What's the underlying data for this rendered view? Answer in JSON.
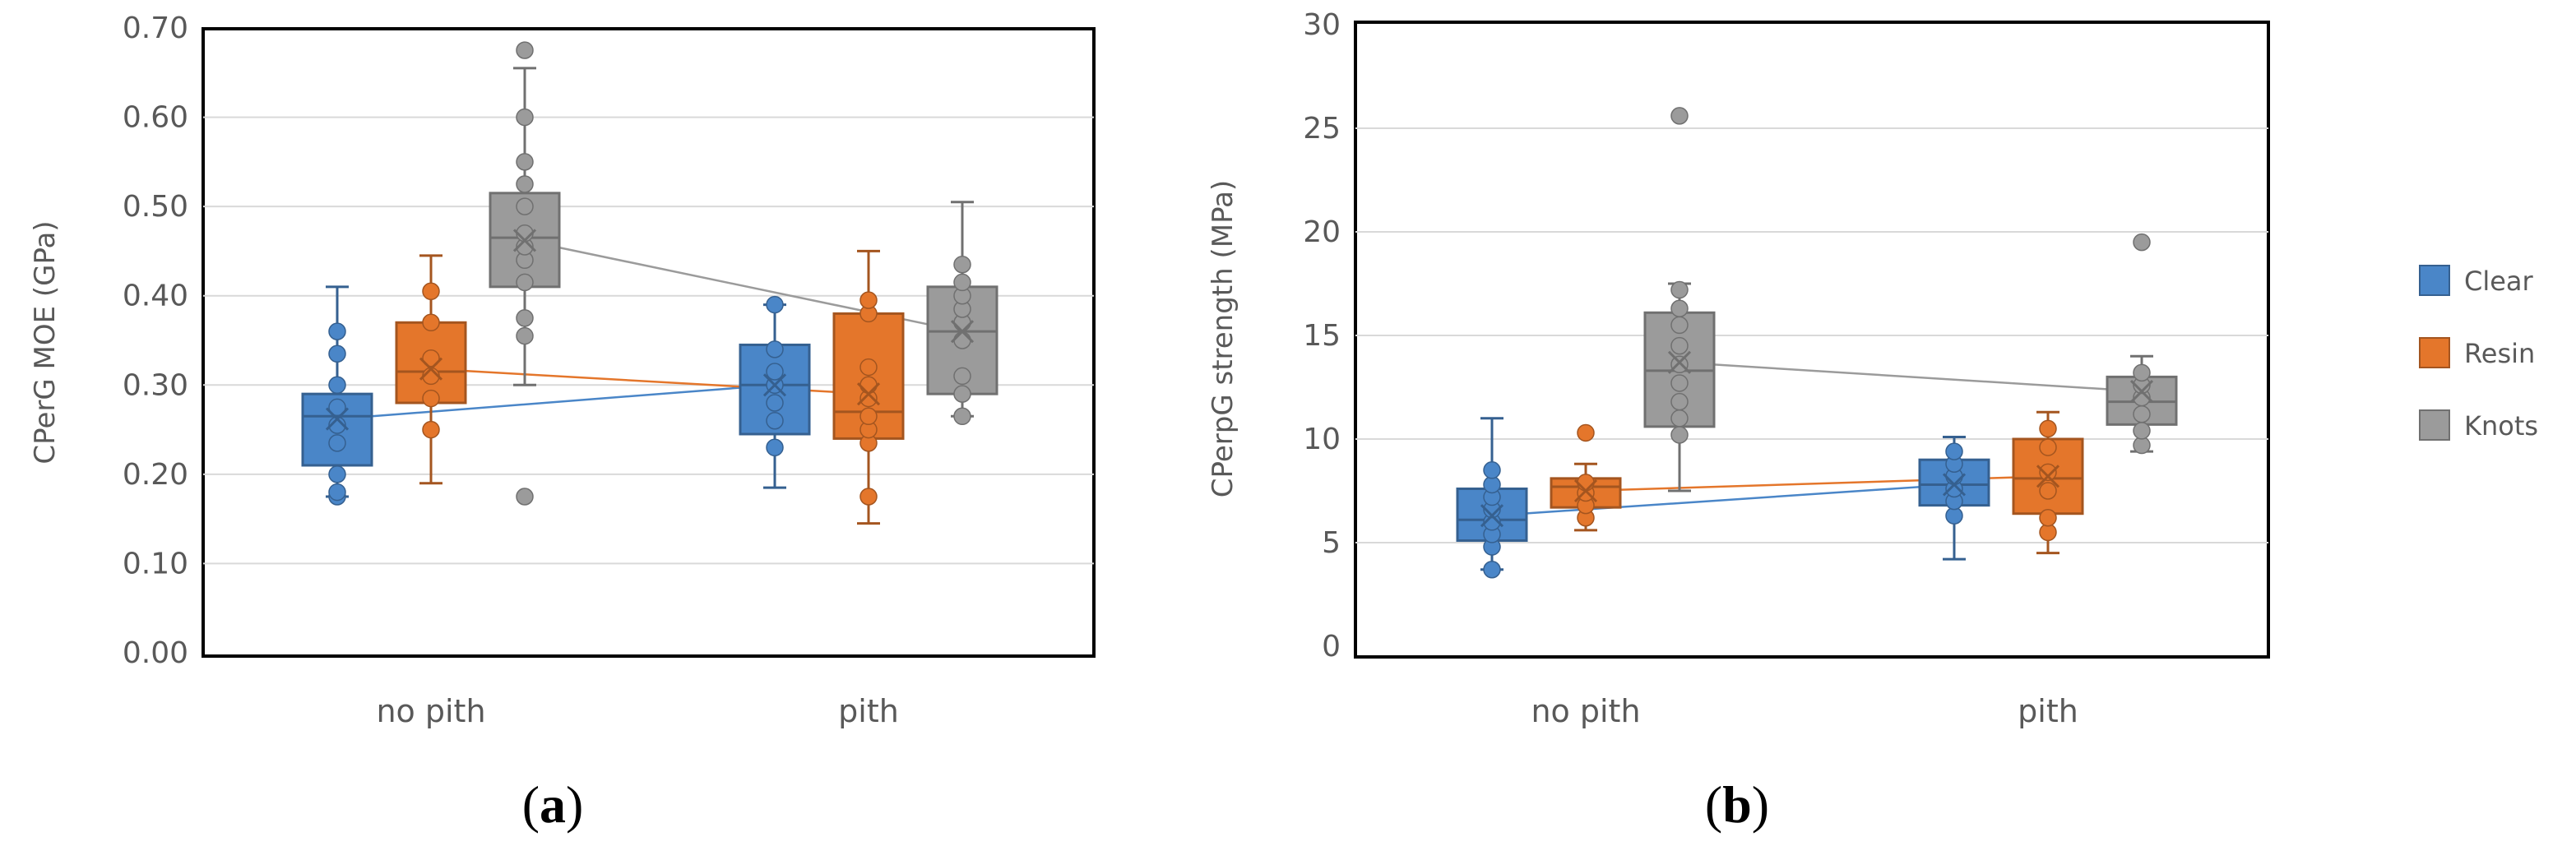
{
  "chart_data": [
    {
      "type": "box",
      "panel_label": "a",
      "title": "",
      "xlabel": "",
      "ylabel": "CPerG MOE (GPa)",
      "ylim": [
        0,
        0.7
      ],
      "yticks": [
        "0.00",
        "0.10",
        "0.20",
        "0.30",
        "0.40",
        "0.50",
        "0.60",
        "0.70"
      ],
      "ytick_values": [
        0,
        0.1,
        0.2,
        0.3,
        0.4,
        0.5,
        0.6,
        0.7
      ],
      "categories": [
        "no pith",
        "pith"
      ],
      "series": [
        {
          "name": "Clear",
          "color": "#4a86c8",
          "boxes": [
            {
              "min": 0.175,
              "q1": 0.21,
              "median": 0.265,
              "q3": 0.29,
              "max": 0.41,
              "mean": 0.262,
              "points": [
                0.175,
                0.18,
                0.2,
                0.235,
                0.255,
                0.275,
                0.3,
                0.335,
                0.36
              ]
            },
            {
              "min": 0.185,
              "q1": 0.245,
              "median": 0.3,
              "q3": 0.345,
              "max": 0.39,
              "mean": 0.3,
              "points": [
                0.23,
                0.26,
                0.28,
                0.3,
                0.315,
                0.34,
                0.39
              ]
            }
          ]
        },
        {
          "name": "Resin",
          "color": "#e4762b",
          "boxes": [
            {
              "min": 0.19,
              "q1": 0.28,
              "median": 0.315,
              "q3": 0.37,
              "max": 0.445,
              "mean": 0.318,
              "points": [
                0.25,
                0.285,
                0.31,
                0.33,
                0.37,
                0.405
              ]
            },
            {
              "min": 0.145,
              "q1": 0.24,
              "median": 0.27,
              "q3": 0.38,
              "max": 0.45,
              "mean": 0.29,
              "points": [
                0.175,
                0.235,
                0.25,
                0.265,
                0.285,
                0.3,
                0.32,
                0.38,
                0.395
              ]
            }
          ]
        },
        {
          "name": "Knots",
          "color": "#9b9b9b",
          "boxes": [
            {
              "min": 0.3,
              "q1": 0.41,
              "median": 0.465,
              "q3": 0.515,
              "max": 0.655,
              "mean": 0.462,
              "points": [
                0.175,
                0.355,
                0.375,
                0.415,
                0.44,
                0.455,
                0.47,
                0.5,
                0.525,
                0.55,
                0.6,
                0.675
              ]
            },
            {
              "min": 0.265,
              "q1": 0.29,
              "median": 0.36,
              "q3": 0.41,
              "max": 0.505,
              "mean": 0.36,
              "points": [
                0.265,
                0.29,
                0.31,
                0.35,
                0.37,
                0.385,
                0.4,
                0.415,
                0.435
              ]
            }
          ]
        }
      ]
    },
    {
      "type": "box",
      "panel_label": "b",
      "title": "",
      "xlabel": "",
      "ylabel": "CPerpG strength (MPa)",
      "ylim": [
        0,
        30
      ],
      "yticks": [
        "0",
        "5",
        "10",
        "15",
        "20",
        "25",
        "30"
      ],
      "ytick_values": [
        0,
        5,
        10,
        15,
        20,
        25,
        30
      ],
      "categories": [
        "no pith",
        "pith"
      ],
      "series": [
        {
          "name": "Clear",
          "color": "#4a86c8",
          "boxes": [
            {
              "min": 3.7,
              "q1": 5.1,
              "median": 6.1,
              "q3": 7.6,
              "max": 11.0,
              "mean": 6.3,
              "points": [
                3.7,
                4.8,
                5.4,
                6.0,
                6.6,
                7.2,
                7.8,
                8.5
              ]
            },
            {
              "min": 4.2,
              "q1": 6.8,
              "median": 7.8,
              "q3": 9.0,
              "max": 10.1,
              "mean": 7.8,
              "points": [
                6.3,
                7.0,
                7.6,
                8.2,
                8.8,
                9.4
              ]
            }
          ]
        },
        {
          "name": "Resin",
          "color": "#e4762b",
          "boxes": [
            {
              "min": 5.6,
              "q1": 6.7,
              "median": 7.7,
              "q3": 8.1,
              "max": 8.8,
              "mean": 7.5,
              "points": [
                6.2,
                6.8,
                7.4,
                7.9,
                10.3
              ]
            },
            {
              "min": 4.5,
              "q1": 6.4,
              "median": 8.1,
              "q3": 10.0,
              "max": 11.3,
              "mean": 8.2,
              "points": [
                5.5,
                6.2,
                7.5,
                8.4,
                9.6,
                10.5
              ]
            }
          ]
        },
        {
          "name": "Knots",
          "color": "#9b9b9b",
          "boxes": [
            {
              "min": 7.5,
              "q1": 10.6,
              "median": 13.3,
              "q3": 16.1,
              "max": 17.5,
              "mean": 13.7,
              "points": [
                10.2,
                11.0,
                11.8,
                12.7,
                13.6,
                14.5,
                15.5,
                16.3,
                17.2,
                25.6
              ]
            },
            {
              "min": 9.4,
              "q1": 10.7,
              "median": 11.8,
              "q3": 13.0,
              "max": 14.0,
              "mean": 12.3,
              "points": [
                9.7,
                10.4,
                11.2,
                12.0,
                12.6,
                13.2,
                19.5
              ]
            }
          ]
        }
      ]
    }
  ],
  "legend": [
    {
      "label": "Clear",
      "color": "#4a86c8"
    },
    {
      "label": "Resin",
      "color": "#e4762b"
    },
    {
      "label": "Knots",
      "color": "#9b9b9b"
    }
  ]
}
